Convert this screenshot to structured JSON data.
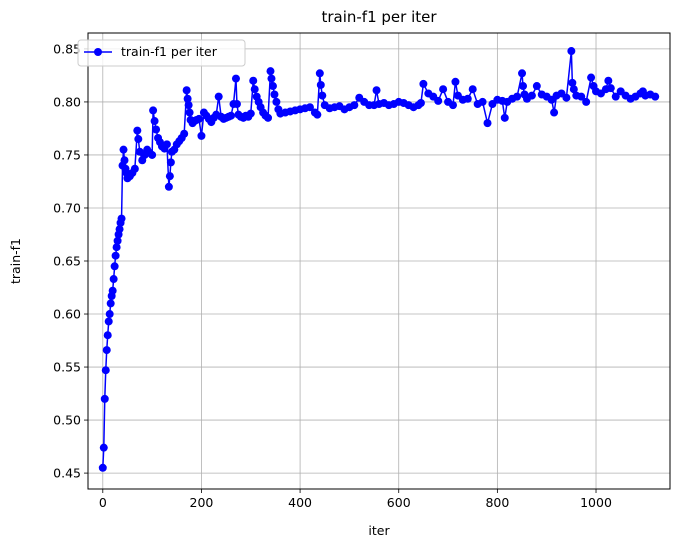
{
  "chart_data": {
    "type": "line",
    "title": "train-f1 per iter",
    "xlabel": "iter",
    "ylabel": "train-f1",
    "xlim": [
      -30,
      1150
    ],
    "ylim": [
      0.435,
      0.865
    ],
    "xticks": [
      0,
      200,
      400,
      600,
      800,
      1000
    ],
    "yticks": [
      0.45,
      0.5,
      0.55,
      0.6,
      0.65,
      0.7,
      0.75,
      0.8,
      0.85
    ],
    "grid": true,
    "legend_position": "upper-left",
    "series": [
      {
        "name": "train-f1 per iter",
        "color": "#0000ff",
        "marker": "circle",
        "x": [
          0,
          2,
          4,
          6,
          8,
          10,
          12,
          14,
          16,
          18,
          20,
          22,
          24,
          26,
          28,
          30,
          32,
          34,
          36,
          38,
          40,
          42,
          44,
          46,
          48,
          50,
          55,
          60,
          65,
          70,
          72,
          75,
          80,
          85,
          90,
          95,
          100,
          102,
          105,
          108,
          112,
          116,
          120,
          125,
          130,
          134,
          136,
          138,
          140,
          145,
          150,
          155,
          160,
          165,
          170,
          172,
          174,
          176,
          178,
          182,
          186,
          190,
          195,
          200,
          205,
          210,
          215,
          220,
          225,
          230,
          235,
          240,
          245,
          250,
          255,
          260,
          265,
          270,
          272,
          275,
          280,
          285,
          290,
          295,
          300,
          305,
          308,
          312,
          316,
          320,
          325,
          330,
          335,
          340,
          342,
          345,
          348,
          352,
          356,
          360,
          370,
          380,
          390,
          400,
          410,
          420,
          430,
          435,
          440,
          442,
          445,
          450,
          460,
          470,
          480,
          490,
          500,
          510,
          520,
          530,
          540,
          550,
          555,
          560,
          570,
          580,
          590,
          600,
          610,
          620,
          630,
          640,
          645,
          650,
          660,
          670,
          680,
          690,
          700,
          710,
          715,
          720,
          730,
          740,
          750,
          760,
          770,
          780,
          790,
          800,
          810,
          815,
          820,
          830,
          840,
          850,
          852,
          855,
          860,
          870,
          880,
          890,
          900,
          910,
          915,
          920,
          930,
          940,
          950,
          952,
          955,
          960,
          970,
          980,
          990,
          995,
          1000,
          1010,
          1020,
          1025,
          1030,
          1040,
          1050,
          1060,
          1070,
          1080,
          1090,
          1095,
          1100,
          1110,
          1120
        ],
        "y": [
          0.455,
          0.474,
          0.52,
          0.547,
          0.566,
          0.58,
          0.593,
          0.6,
          0.61,
          0.617,
          0.622,
          0.633,
          0.645,
          0.655,
          0.663,
          0.669,
          0.675,
          0.68,
          0.686,
          0.69,
          0.74,
          0.755,
          0.745,
          0.737,
          0.733,
          0.728,
          0.73,
          0.733,
          0.737,
          0.773,
          0.765,
          0.753,
          0.745,
          0.75,
          0.755,
          0.752,
          0.75,
          0.792,
          0.782,
          0.774,
          0.766,
          0.762,
          0.758,
          0.756,
          0.76,
          0.72,
          0.73,
          0.743,
          0.753,
          0.755,
          0.76,
          0.763,
          0.766,
          0.77,
          0.811,
          0.803,
          0.797,
          0.79,
          0.783,
          0.78,
          0.782,
          0.783,
          0.784,
          0.768,
          0.79,
          0.787,
          0.784,
          0.781,
          0.785,
          0.788,
          0.805,
          0.786,
          0.784,
          0.785,
          0.786,
          0.787,
          0.798,
          0.822,
          0.798,
          0.788,
          0.786,
          0.785,
          0.787,
          0.786,
          0.789,
          0.82,
          0.812,
          0.805,
          0.8,
          0.795,
          0.79,
          0.787,
          0.785,
          0.829,
          0.822,
          0.815,
          0.807,
          0.8,
          0.793,
          0.789,
          0.79,
          0.791,
          0.792,
          0.793,
          0.794,
          0.795,
          0.79,
          0.788,
          0.827,
          0.816,
          0.806,
          0.797,
          0.794,
          0.795,
          0.796,
          0.793,
          0.795,
          0.797,
          0.804,
          0.8,
          0.797,
          0.797,
          0.811,
          0.798,
          0.799,
          0.797,
          0.798,
          0.8,
          0.799,
          0.797,
          0.795,
          0.797,
          0.799,
          0.817,
          0.808,
          0.805,
          0.801,
          0.812,
          0.8,
          0.797,
          0.819,
          0.806,
          0.802,
          0.803,
          0.812,
          0.798,
          0.8,
          0.78,
          0.798,
          0.802,
          0.801,
          0.785,
          0.8,
          0.803,
          0.805,
          0.827,
          0.815,
          0.807,
          0.803,
          0.806,
          0.815,
          0.807,
          0.805,
          0.802,
          0.79,
          0.806,
          0.808,
          0.804,
          0.848,
          0.818,
          0.812,
          0.806,
          0.805,
          0.8,
          0.823,
          0.815,
          0.81,
          0.808,
          0.812,
          0.82,
          0.813,
          0.805,
          0.81,
          0.806,
          0.803,
          0.805,
          0.808,
          0.81,
          0.806,
          0.807,
          0.805
        ]
      }
    ]
  }
}
